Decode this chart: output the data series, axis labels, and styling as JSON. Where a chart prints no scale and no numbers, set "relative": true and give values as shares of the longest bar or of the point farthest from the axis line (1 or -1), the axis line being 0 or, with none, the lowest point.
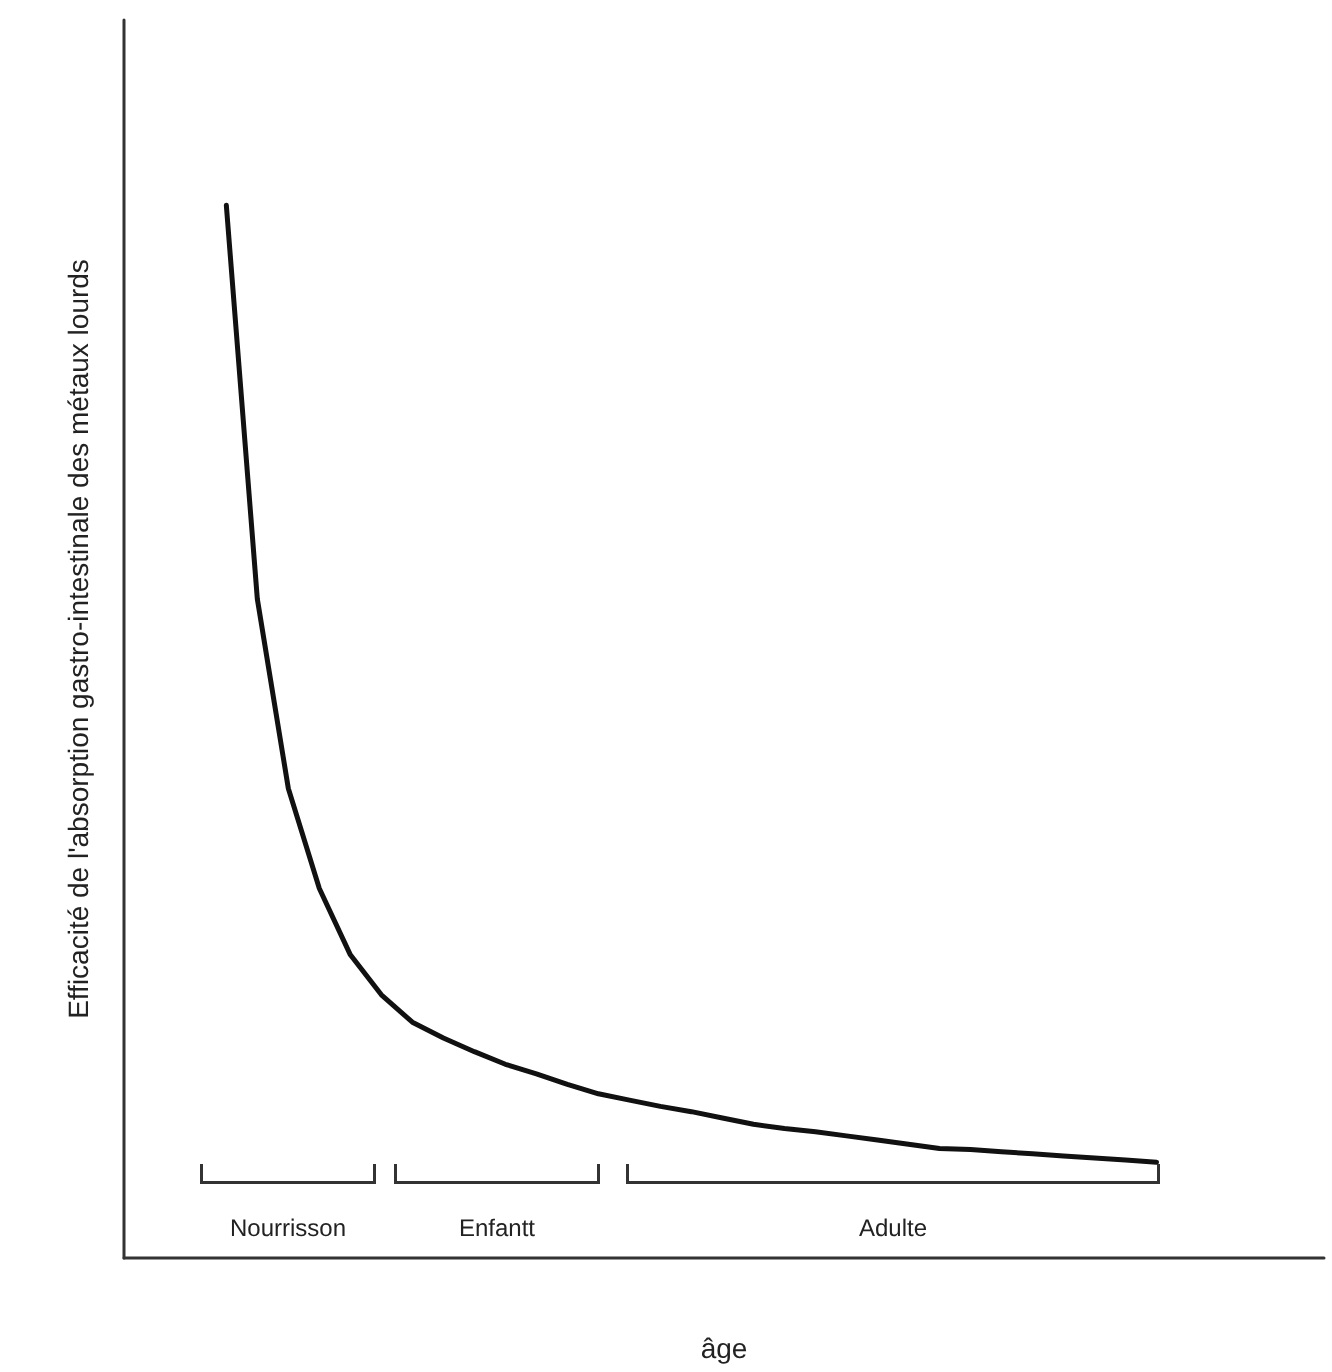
{
  "chart_data": {
    "type": "line",
    "relative": true,
    "xlabel": "âge",
    "ylabel": "Efficacité de l'absorption gastro-intestinale des métaux lourds",
    "categories": [
      null,
      null,
      null,
      null,
      null,
      null,
      null,
      null,
      null,
      null,
      null,
      null,
      null,
      null,
      null,
      null,
      null,
      null,
      null,
      null,
      null,
      null,
      null,
      null,
      null,
      null,
      null,
      null,
      null,
      null,
      null
    ],
    "series": [
      {
        "color": "#111111",
        "values": [
          1.0,
          0.626,
          0.446,
          0.351,
          0.288,
          0.25,
          0.224,
          0.209,
          0.196,
          0.184,
          0.175,
          0.165,
          0.156,
          0.15,
          0.144,
          0.139,
          0.133,
          0.127,
          0.123,
          0.12,
          0.116,
          0.112,
          0.108,
          0.104,
          0.103,
          0.101,
          0.099,
          0.097,
          0.095,
          0.093,
          0.091
        ]
      }
    ],
    "annotations": [
      "Nourrisson",
      "Enfantt",
      "Adulte"
    ]
  }
}
